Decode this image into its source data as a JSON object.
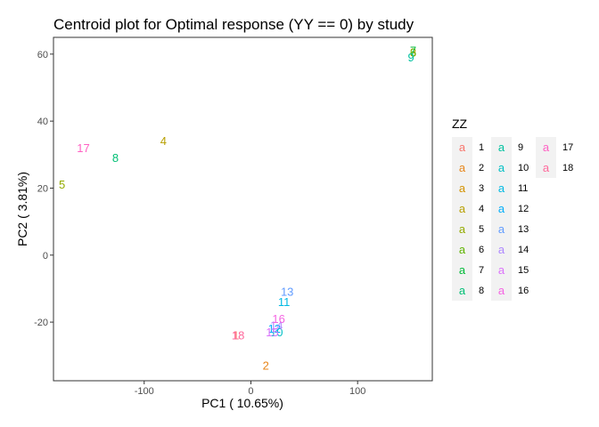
{
  "chart_data": {
    "type": "scatter",
    "title": "Centroid plot for Optimal response (YY == 0) by study",
    "xlabel": "PC1 ( 10.65%)",
    "ylabel": "PC2 ( 3.81%)",
    "xlim": [
      -185,
      170
    ],
    "ylim": [
      -37.5,
      65
    ],
    "xticks": [
      -100,
      0,
      100
    ],
    "yticks": [
      -20,
      0,
      20,
      40,
      60
    ],
    "grid": false,
    "legend": {
      "title": "ZZ",
      "position": "right",
      "key_glyph": "a",
      "ncol": 3
    },
    "points": [
      {
        "label": "1",
        "x": -14,
        "y": -24,
        "color": "#F8766D"
      },
      {
        "label": "2",
        "x": 14,
        "y": -33,
        "color": "#E7861B"
      },
      {
        "label": "3",
        "x": 152,
        "y": 60.5,
        "color": "#D39200"
      },
      {
        "label": "4",
        "x": -82,
        "y": 34,
        "color": "#B79F00"
      },
      {
        "label": "5",
        "x": -177,
        "y": 21,
        "color": "#93AA00"
      },
      {
        "label": "6",
        "x": 152,
        "y": 60.5,
        "color": "#5EB300"
      },
      {
        "label": "7",
        "x": 152,
        "y": 61,
        "color": "#00BA38"
      },
      {
        "label": "8",
        "x": -127,
        "y": 29,
        "color": "#00BF74"
      },
      {
        "label": "9",
        "x": 150,
        "y": 59,
        "color": "#00C19F"
      },
      {
        "label": "10",
        "x": 24,
        "y": -23,
        "color": "#00BFC4"
      },
      {
        "label": "11",
        "x": 31,
        "y": -14,
        "color": "#00B9E3"
      },
      {
        "label": "12",
        "x": 22,
        "y": -22,
        "color": "#00ADFA"
      },
      {
        "label": "13",
        "x": 34,
        "y": -11,
        "color": "#619CFF"
      },
      {
        "label": "14",
        "x": 24,
        "y": -21,
        "color": "#AE87FF"
      },
      {
        "label": "15",
        "x": 20,
        "y": -23,
        "color": "#DB72FB"
      },
      {
        "label": "16",
        "x": 26,
        "y": -19,
        "color": "#F564E3"
      },
      {
        "label": "17",
        "x": -157,
        "y": 32,
        "color": "#FF61C3"
      },
      {
        "label": "18",
        "x": -12,
        "y": -24,
        "color": "#FF699C"
      }
    ]
  }
}
